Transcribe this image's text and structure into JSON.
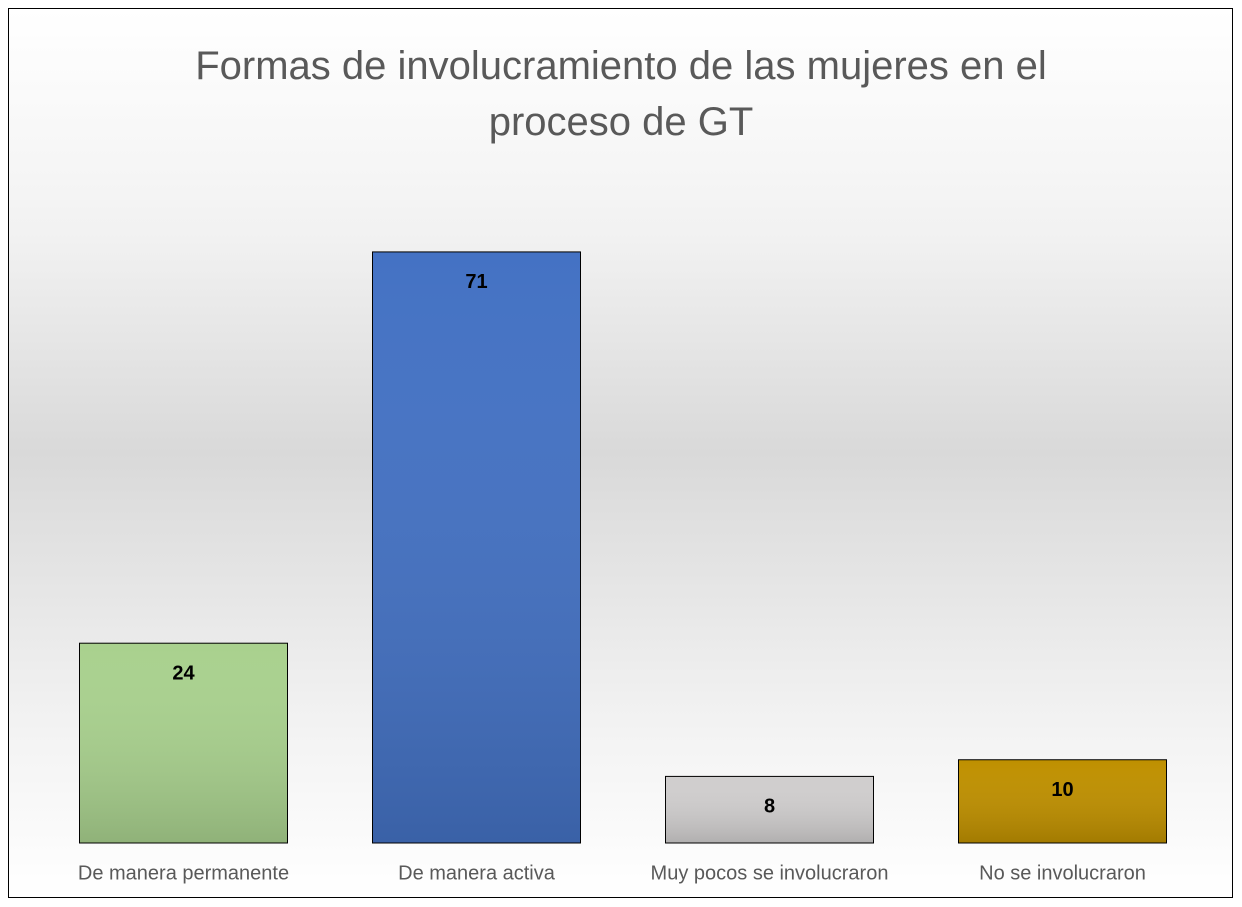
{
  "chart_data": {
    "type": "bar",
    "title": "Formas de involucramiento de las mujeres en el proceso de GT",
    "categories": [
      "De manera permanente",
      "De manera activa",
      "Muy pocos se involucraron",
      "No se involucraron"
    ],
    "values": [
      24,
      71,
      8,
      10
    ],
    "colors": [
      "#a9d18e",
      "#4472c4",
      "#d0cece",
      "#bf9000"
    ]
  }
}
